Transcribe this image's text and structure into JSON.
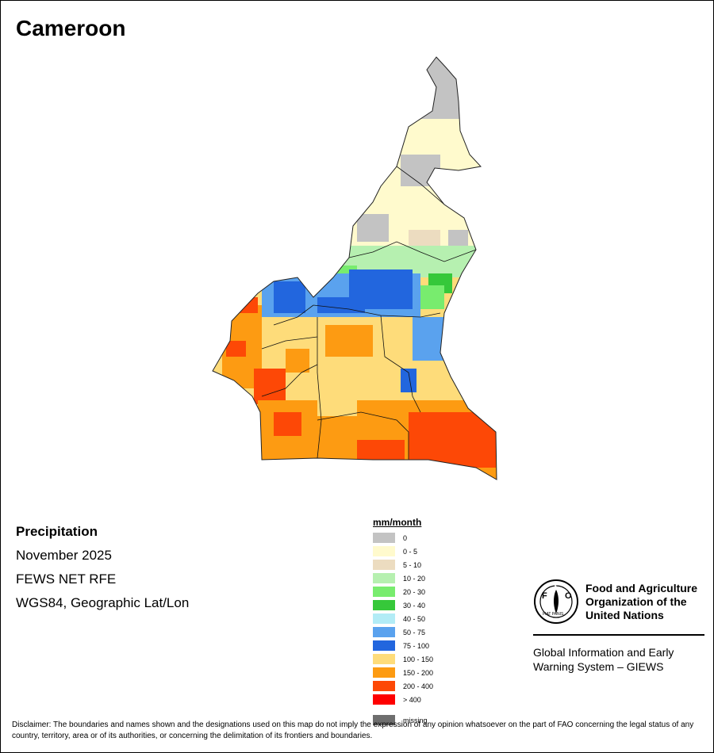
{
  "title": "Cameroon",
  "info": {
    "variable": "Precipitation",
    "period": "November 2025",
    "source": "FEWS NET RFE",
    "projection": "WGS84, Geographic Lat/Lon"
  },
  "legend": {
    "title": "mm/month",
    "items": [
      {
        "label": "0",
        "color": "#c3c3c3"
      },
      {
        "label": "0 - 5",
        "color": "#fffacd"
      },
      {
        "label": "5 - 10",
        "color": "#ecdcc0"
      },
      {
        "label": "10 - 20",
        "color": "#b6f0b0"
      },
      {
        "label": "20 - 30",
        "color": "#78ec6e"
      },
      {
        "label": "30 - 40",
        "color": "#36c83a"
      },
      {
        "label": "40 - 50",
        "color": "#b2ecf6"
      },
      {
        "label": "50 - 75",
        "color": "#5aa2ee"
      },
      {
        "label": "75 - 100",
        "color": "#2266de"
      },
      {
        "label": "100 - 150",
        "color": "#fedc7a"
      },
      {
        "label": "150 - 200",
        "color": "#fd9b12"
      },
      {
        "label": "200 - 400",
        "color": "#fd4806"
      },
      {
        "label": "> 400",
        "color": "#fe0000"
      },
      {
        "label": "missing",
        "color": "#6e6e6e"
      }
    ]
  },
  "org": {
    "name": "Food and Agriculture Organization of the United Nations",
    "name_lines": [
      "Food and Agriculture",
      "Organization of the",
      "United Nations"
    ],
    "logo_text": "FAO",
    "logo_motto": "FIAT PANIS",
    "system_lines": [
      "Global Information and Early",
      "Warning System – GIEWS"
    ]
  },
  "disclaimer": "Disclaimer: The boundaries and names shown and the designations used on this map do not imply the expression of any opinion whatsoever on the part of FAO concerning the legal status of any country, territory, area or of its authorities, or concerning the delimitation of its frontiers and boundaries.",
  "map_regions": [
    {
      "name": "far-north",
      "color": "#fffacd"
    },
    {
      "name": "far-north-dry",
      "color": "#c3c3c3"
    },
    {
      "name": "north",
      "color": "#fffacd"
    },
    {
      "name": "north-dry",
      "color": "#c3c3c3"
    },
    {
      "name": "north-tan",
      "color": "#ecdcc0"
    },
    {
      "name": "adamawa-light-green",
      "color": "#b6f0b0"
    },
    {
      "name": "adamawa-green",
      "color": "#78ec6e"
    },
    {
      "name": "adamawa-blue",
      "color": "#5aa2ee"
    },
    {
      "name": "adamawa-dark-blue",
      "color": "#2266de"
    },
    {
      "name": "northwest-blue",
      "color": "#5aa2ee"
    },
    {
      "name": "center-yellow",
      "color": "#fedc7a"
    },
    {
      "name": "east-blue",
      "color": "#5aa2ee"
    },
    {
      "name": "southwest-orange",
      "color": "#fd9b12"
    },
    {
      "name": "coast-red",
      "color": "#fd4806"
    },
    {
      "name": "south-orange",
      "color": "#fd9b12"
    },
    {
      "name": "southeast-red",
      "color": "#fd4806"
    }
  ]
}
